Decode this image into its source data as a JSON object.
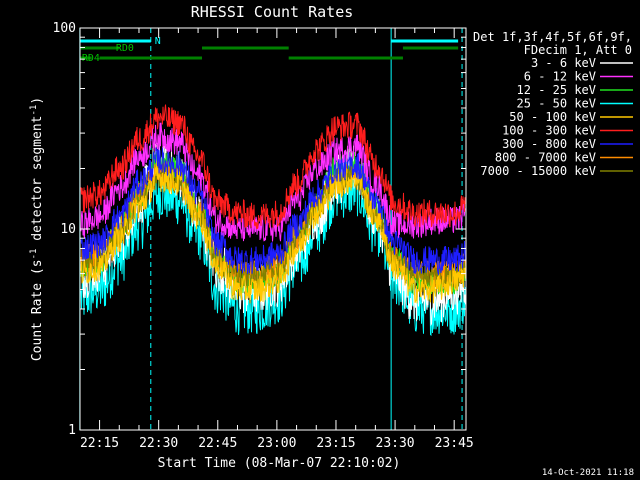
{
  "chart_data": {
    "type": "line",
    "title": "RHESSI Count Rates",
    "xlabel": "Start Time (08-Mar-07 22:10:02)",
    "ylabel": "Count Rate (s",
    "ylabel_sup": "-1",
    "ylabel_tail": " detector segment",
    "ylabel_sup2": "-1",
    "ylabel_close": ")",
    "y_scale": "log",
    "xlim": [
      "22:10:02",
      "23:48:00"
    ],
    "ylim": [
      1,
      100
    ],
    "x_ticks": [
      "22:15",
      "22:30",
      "22:45",
      "23:00",
      "23:15",
      "23:30",
      "23:45"
    ],
    "y_ticks": [
      "1",
      "10",
      "100"
    ],
    "timestamp": "14-Oct-2021 11:18",
    "legend": {
      "header_lines": [
        "Det 1f,3f,4f,5f,6f,9f,",
        "FDecim 1, Att 0"
      ],
      "position": "right"
    },
    "x": [
      "22:10",
      "22:15",
      "22:20",
      "22:25",
      "22:30",
      "22:35",
      "22:40",
      "22:45",
      "22:50",
      "22:55",
      "23:00",
      "23:05",
      "23:10",
      "23:15",
      "23:20",
      "23:25",
      "23:30",
      "23:35",
      "23:40",
      "23:45",
      "23:48"
    ],
    "series": [
      {
        "name": "3 - 6 keV",
        "color": "#ffffff",
        "values": [
          6,
          6.5,
          9,
          14,
          21,
          19,
          12,
          6.5,
          5,
          5,
          5.5,
          8,
          12,
          17.5,
          20,
          12,
          6,
          4.5,
          4.5,
          5,
          5.5
        ]
      },
      {
        "name": "6 - 12 keV",
        "color": "#ff30ff",
        "values": [
          10.5,
          11.5,
          16,
          23,
          29,
          27,
          18.5,
          11,
          10,
          10,
          10,
          14,
          20,
          24.5,
          26,
          17,
          10.5,
          10.5,
          11,
          11,
          12
        ]
      },
      {
        "name": "12 - 25 keV",
        "color": "#20e020",
        "values": [
          6.5,
          7,
          10,
          15,
          21,
          20,
          13,
          7,
          5.5,
          5.5,
          6,
          9,
          13.5,
          20,
          21,
          13,
          7,
          5.5,
          5.5,
          5.5,
          6
        ]
      },
      {
        "name": "25 - 50 keV",
        "color": "#00ffff",
        "values": [
          4.5,
          5,
          7,
          10.5,
          15,
          14,
          9.5,
          5,
          4,
          4,
          4.5,
          6.5,
          10,
          15,
          15.5,
          10,
          5.5,
          4,
          4,
          4,
          4.5
        ]
      },
      {
        "name": "50 - 100 keV",
        "color": "#ffc800",
        "values": [
          6,
          6.5,
          9,
          13,
          18,
          17,
          11.5,
          6.5,
          5,
          5,
          5.5,
          8,
          12,
          16.5,
          18,
          11.5,
          6.5,
          5,
          5,
          5.5,
          6
        ]
      },
      {
        "name": "100 - 300 keV",
        "color": "#ff1e1e",
        "values": [
          14,
          15,
          20,
          28,
          36,
          34,
          23,
          13.5,
          12,
          11.5,
          12,
          17,
          25,
          32,
          33,
          21,
          13.5,
          12,
          12,
          12,
          13
        ]
      },
      {
        "name": "300 - 800 keV",
        "color": "#1e1eff",
        "values": [
          8,
          8.5,
          11.5,
          17,
          22,
          21,
          15,
          8.5,
          7,
          7,
          7.5,
          10.5,
          15,
          20,
          21,
          14,
          8.5,
          7,
          7,
          7,
          7.5
        ]
      },
      {
        "name": "800 - 7000 keV",
        "color": "#ff8c00",
        "values": [
          7,
          7.5,
          10,
          14.5,
          19,
          18,
          12.5,
          7,
          6,
          6,
          6.5,
          9,
          13,
          17.5,
          19,
          12,
          7,
          6,
          6,
          6,
          6.5
        ]
      },
      {
        "name": "7000 - 15000 keV",
        "color": "#808000",
        "values": [
          6.5,
          7,
          9.5,
          14,
          18.5,
          17.5,
          12,
          6.8,
          5.8,
          5.8,
          6.2,
          8.8,
          12.8,
          17,
          18.5,
          11.5,
          6.8,
          5.8,
          5.8,
          5.8,
          6.2
        ]
      }
    ],
    "annotations": {
      "cyan_solid_lines": [
        "22:10",
        "23:29",
        "23:48"
      ],
      "cyan_dashed_lines": [
        "22:28",
        "23:47"
      ],
      "cyan_bars": [
        {
          "label": "N",
          "start": "22:10",
          "end": "22:28"
        },
        {
          "label": "",
          "start": "23:29",
          "end": "23:46"
        }
      ],
      "green_bars_upper": [
        {
          "label": "RD0",
          "start": "22:10",
          "end": "22:20"
        },
        {
          "label": "",
          "start": "22:41",
          "end": "23:03"
        },
        {
          "label": "",
          "start": "23:32",
          "end": "23:46"
        }
      ],
      "green_bars_lower": [
        {
          "label": "RD4",
          "start": "22:10",
          "end": "22:13"
        },
        {
          "label": "",
          "start": "22:15",
          "end": "22:41"
        },
        {
          "label": "",
          "start": "23:03",
          "end": "23:32"
        }
      ]
    }
  }
}
